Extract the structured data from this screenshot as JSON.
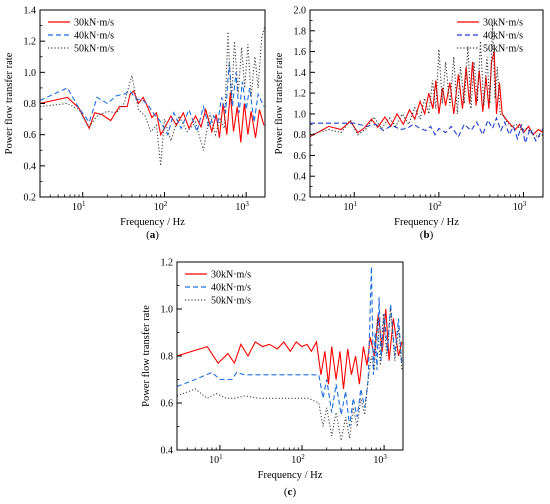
{
  "chart_data": [
    {
      "type": "line",
      "panel_label": "(a)",
      "panel_letter": "a",
      "xlabel": "Frequency / Hz",
      "ylabel": "Power flow transfer rate",
      "xscale": "log",
      "xlim": [
        3,
        1700
      ],
      "ylim": [
        0.2,
        1.4
      ],
      "xticks": [
        {
          "value": 10,
          "label": "10",
          "exp": "1"
        },
        {
          "value": 100,
          "label": "10",
          "exp": "2"
        },
        {
          "value": 1000,
          "label": "10",
          "exp": "3"
        }
      ],
      "yticks": [
        0.2,
        0.4,
        0.6,
        0.8,
        1.0,
        1.2,
        1.4
      ],
      "ytick_labels": [
        "0.2",
        "0.4",
        "0.6",
        "0.8",
        "1.0",
        "1.2",
        "1.4"
      ],
      "grid": false,
      "legend_position": "top-left",
      "series": [
        {
          "name": "30kN·m/s",
          "color": "#ff0000",
          "style": "solid",
          "x": [
            3,
            6.5,
            9,
            12,
            14,
            17,
            22,
            28,
            35,
            38,
            42,
            48,
            55,
            62,
            70,
            80,
            90,
            100,
            120,
            140,
            170,
            200,
            240,
            280,
            320,
            380,
            430,
            470,
            520,
            580,
            640,
            700,
            780,
            860,
            950,
            1050,
            1150,
            1300,
            1450,
            1650
          ],
          "y": [
            0.8,
            0.84,
            0.77,
            0.64,
            0.74,
            0.73,
            0.69,
            0.78,
            0.78,
            0.86,
            0.88,
            0.8,
            0.84,
            0.78,
            0.71,
            0.74,
            0.6,
            0.64,
            0.72,
            0.66,
            0.74,
            0.64,
            0.72,
            0.65,
            0.76,
            0.62,
            0.73,
            0.58,
            0.8,
            0.6,
            0.87,
            0.62,
            0.78,
            0.55,
            0.8,
            0.6,
            0.75,
            0.58,
            0.76,
            0.66
          ]
        },
        {
          "name": "40kN·m/s",
          "color": "#1f6fe0",
          "style": "dashed",
          "x": [
            3,
            6.5,
            9,
            12,
            15,
            20,
            26,
            32,
            38,
            45,
            55,
            65,
            75,
            85,
            95,
            110,
            130,
            160,
            200,
            250,
            300,
            350,
            400,
            450,
            500,
            560,
            620,
            680,
            750,
            820,
            900,
            1000,
            1100,
            1250,
            1400,
            1650
          ],
          "y": [
            0.82,
            0.9,
            0.77,
            0.68,
            0.84,
            0.8,
            0.85,
            0.86,
            0.88,
            0.83,
            0.82,
            0.78,
            0.73,
            0.7,
            0.66,
            0.6,
            0.74,
            0.64,
            0.76,
            0.62,
            0.78,
            0.65,
            0.72,
            0.68,
            0.84,
            0.74,
            1.06,
            0.78,
            1.0,
            0.74,
            0.94,
            0.76,
            0.9,
            0.68,
            0.86,
            0.78
          ]
        },
        {
          "name": "50kN·m/s",
          "color": "#444444",
          "style": "dotted",
          "x": [
            3,
            6.5,
            9,
            12,
            15,
            20,
            26,
            32,
            40,
            48,
            58,
            68,
            80,
            90,
            100,
            120,
            150,
            190,
            240,
            300,
            360,
            420,
            480,
            540,
            600,
            660,
            720,
            800,
            880,
            960,
            1050,
            1150,
            1280,
            1400,
            1550,
            1700
          ],
          "y": [
            0.78,
            0.8,
            0.76,
            0.65,
            0.72,
            0.75,
            0.74,
            0.8,
            0.98,
            0.76,
            0.72,
            0.62,
            0.66,
            0.4,
            0.7,
            0.56,
            0.72,
            0.62,
            0.68,
            0.5,
            0.74,
            0.6,
            0.7,
            0.64,
            1.26,
            0.8,
            1.2,
            0.86,
            1.16,
            0.9,
            1.18,
            0.84,
            1.1,
            0.9,
            1.22,
            1.3
          ]
        }
      ]
    },
    {
      "type": "line",
      "panel_label": "(b)",
      "panel_letter": "b",
      "xlabel": "Frequency / Hz",
      "ylabel": "Power flow transfer rate",
      "xscale": "log",
      "xlim": [
        3,
        1700
      ],
      "ylim": [
        0.2,
        2.0
      ],
      "xticks": [
        {
          "value": 10,
          "label": "10",
          "exp": "1"
        },
        {
          "value": 100,
          "label": "10",
          "exp": "2"
        },
        {
          "value": 1000,
          "label": "10",
          "exp": "3"
        }
      ],
      "yticks": [
        0.2,
        0.4,
        0.6,
        0.8,
        1.0,
        1.2,
        1.4,
        1.6,
        1.8,
        2.0
      ],
      "ytick_labels": [
        "0.2",
        "0.4",
        "0.6",
        "0.8",
        "1.0",
        "1.2",
        "1.4",
        "1.6",
        "1.8",
        "2.0"
      ],
      "grid": false,
      "legend_position": "top-right",
      "series": [
        {
          "name": "30kN·m/s",
          "color": "#ff0000",
          "style": "solid",
          "x": [
            3,
            5,
            7,
            9,
            11,
            13,
            16,
            19,
            23,
            27,
            32,
            38,
            45,
            52,
            60,
            68,
            76,
            85,
            92,
            100,
            110,
            120,
            135,
            150,
            170,
            190,
            210,
            230,
            250,
            275,
            300,
            330,
            360,
            390,
            420,
            450,
            480,
            520,
            560,
            620,
            700,
            800,
            900,
            1000,
            1150,
            1300,
            1500,
            1700
          ],
          "y": [
            0.78,
            0.88,
            0.85,
            0.93,
            0.82,
            0.86,
            0.95,
            0.87,
            0.97,
            0.88,
            1.0,
            0.9,
            1.04,
            0.95,
            1.12,
            1.0,
            1.2,
            1.05,
            1.32,
            1.0,
            1.25,
            1.08,
            1.3,
            1.0,
            1.38,
            1.05,
            1.45,
            1.1,
            1.5,
            1.08,
            1.42,
            1.02,
            1.36,
            1.05,
            1.5,
            1.6,
            1.0,
            1.3,
            1.0,
            0.95,
            0.9,
            0.85,
            0.9,
            0.82,
            0.88,
            0.8,
            0.85,
            0.82
          ]
        },
        {
          "name": "40kN·m/s",
          "color": "#1f3fd0",
          "style": "dashed",
          "x": [
            3,
            10,
            14,
            18,
            22,
            28,
            35,
            42,
            50,
            60,
            70,
            80,
            90,
            100,
            120,
            140,
            170,
            200,
            240,
            280,
            330,
            380,
            430,
            480,
            540,
            600,
            680,
            760,
            850,
            950,
            1050,
            1200,
            1400,
            1700
          ],
          "y": [
            0.91,
            0.91,
            0.88,
            0.9,
            0.84,
            0.89,
            0.85,
            0.86,
            0.9,
            0.86,
            0.84,
            0.88,
            0.8,
            0.86,
            0.82,
            0.88,
            0.78,
            0.9,
            0.84,
            0.92,
            0.8,
            0.94,
            0.86,
            0.96,
            0.84,
            0.92,
            0.8,
            0.88,
            0.76,
            0.9,
            0.72,
            0.86,
            0.74,
            0.86
          ]
        },
        {
          "name": "50kN·m/s",
          "color": "#333333",
          "style": "dotted",
          "x": [
            3,
            5,
            7,
            9,
            11,
            14,
            17,
            21,
            26,
            31,
            37,
            44,
            52,
            60,
            68,
            76,
            84,
            92,
            100,
            110,
            120,
            135,
            150,
            165,
            180,
            200,
            220,
            240,
            260,
            285,
            310,
            340,
            370,
            400,
            430,
            460,
            490,
            530,
            580,
            640,
            720,
            820,
            950,
            1100,
            1300,
            1500,
            1700
          ],
          "y": [
            0.8,
            0.85,
            0.82,
            0.94,
            0.8,
            0.86,
            0.97,
            0.86,
            0.96,
            0.88,
            1.0,
            0.9,
            1.06,
            0.95,
            1.15,
            1.0,
            1.32,
            1.05,
            1.62,
            1.1,
            1.5,
            1.08,
            1.55,
            1.0,
            1.45,
            1.1,
            1.65,
            1.05,
            1.5,
            1.12,
            1.7,
            1.08,
            1.55,
            1.1,
            1.86,
            1.15,
            1.45,
            1.0,
            0.98,
            0.92,
            0.88,
            0.9,
            0.84,
            0.86,
            0.8,
            0.78,
            0.8
          ]
        }
      ]
    },
    {
      "type": "line",
      "panel_label": "(c)",
      "panel_letter": "c",
      "xlabel": "Frequency / Hz",
      "ylabel": "Power flow transfer rate",
      "xscale": "log",
      "xlim": [
        3,
        1700
      ],
      "ylim": [
        0.4,
        1.2
      ],
      "xticks": [
        {
          "value": 10,
          "label": "10",
          "exp": "1"
        },
        {
          "value": 100,
          "label": "10",
          "exp": "2"
        },
        {
          "value": 1000,
          "label": "10",
          "exp": "3"
        }
      ],
      "yticks": [
        0.4,
        0.6,
        0.8,
        1.0,
        1.2
      ],
      "ytick_labels": [
        "0.4",
        "0.6",
        "0.8",
        "1.0",
        "1.2"
      ],
      "grid": false,
      "legend_position": "top-left",
      "series": [
        {
          "name": "30kN·m/s",
          "color": "#ff0000",
          "style": "solid",
          "x": [
            3,
            7,
            9.5,
            12.5,
            15,
            18,
            22,
            27,
            33,
            40,
            50,
            60,
            72,
            85,
            100,
            115,
            130,
            150,
            170,
            190,
            210,
            230,
            260,
            290,
            320,
            360,
            400,
            450,
            500,
            560,
            620,
            680,
            760,
            850,
            950,
            1050,
            1150,
            1300,
            1500,
            1650
          ],
          "y": [
            0.8,
            0.84,
            0.77,
            0.81,
            0.77,
            0.85,
            0.8,
            0.86,
            0.84,
            0.85,
            0.83,
            0.86,
            0.82,
            0.86,
            0.84,
            0.85,
            0.82,
            0.86,
            0.72,
            0.82,
            0.68,
            0.84,
            0.7,
            0.82,
            0.66,
            0.83,
            0.72,
            0.8,
            0.68,
            0.84,
            0.76,
            0.88,
            0.8,
            0.98,
            0.82,
            1.0,
            0.78,
            0.96,
            0.8,
            0.86
          ]
        },
        {
          "name": "40kN·m/s",
          "color": "#1f6fe0",
          "style": "dashed",
          "x": [
            3,
            5,
            8,
            10,
            14,
            16,
            20,
            30,
            50,
            80,
            120,
            160,
            180,
            200,
            230,
            260,
            300,
            340,
            380,
            420,
            470,
            520,
            580,
            640,
            700,
            740,
            780,
            820,
            870,
            920,
            1000,
            1100,
            1200,
            1350,
            1500,
            1650
          ],
          "y": [
            0.67,
            0.7,
            0.73,
            0.7,
            0.7,
            0.73,
            0.72,
            0.72,
            0.72,
            0.72,
            0.72,
            0.72,
            0.62,
            0.7,
            0.56,
            0.68,
            0.55,
            0.65,
            0.5,
            0.62,
            0.54,
            0.66,
            0.58,
            0.7,
            1.18,
            0.72,
            0.9,
            0.74,
            1.05,
            0.78,
            0.98,
            0.82,
            1.02,
            0.8,
            0.96,
            0.76
          ]
        },
        {
          "name": "50kN·m/s",
          "color": "#444444",
          "style": "dotted",
          "x": [
            3,
            5,
            7,
            9,
            12,
            15,
            20,
            30,
            50,
            80,
            120,
            160,
            180,
            200,
            230,
            260,
            300,
            340,
            380,
            420,
            470,
            520,
            580,
            640,
            700,
            760,
            830,
            900,
            980,
            1080,
            1200,
            1350,
            1500,
            1650
          ],
          "y": [
            0.63,
            0.66,
            0.62,
            0.64,
            0.62,
            0.62,
            0.63,
            0.62,
            0.62,
            0.62,
            0.62,
            0.6,
            0.5,
            0.58,
            0.46,
            0.56,
            0.44,
            0.54,
            0.45,
            0.58,
            0.5,
            0.62,
            0.55,
            0.7,
            0.8,
            0.74,
            0.96,
            0.76,
            0.98,
            0.8,
            1.0,
            0.78,
            0.92,
            0.74
          ]
        }
      ]
    }
  ]
}
